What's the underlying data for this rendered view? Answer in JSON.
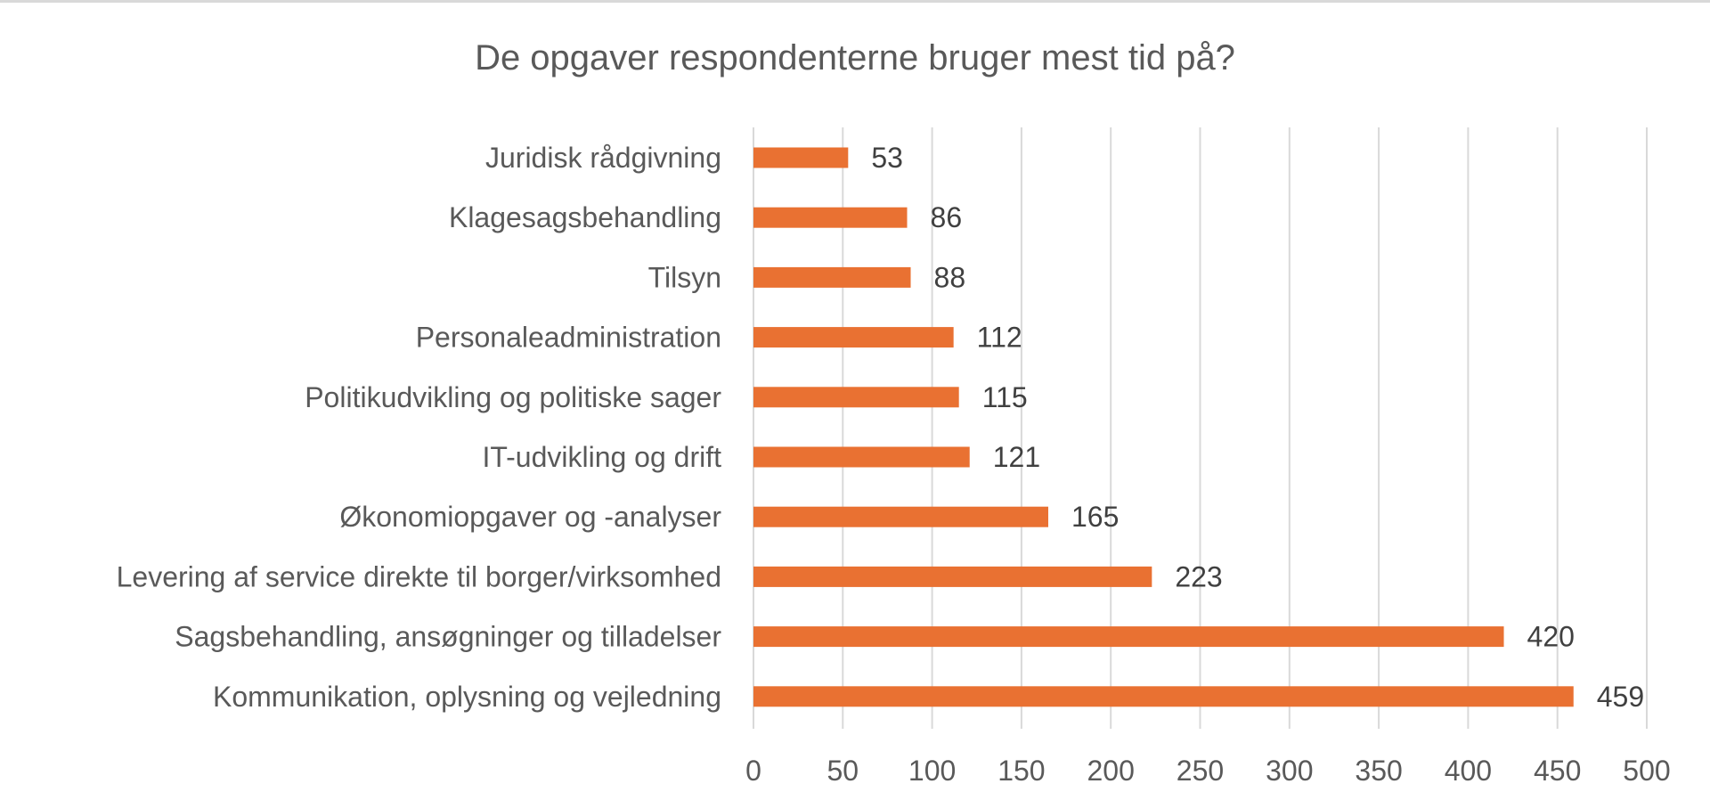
{
  "chart_data": {
    "type": "bar",
    "orientation": "horizontal",
    "title": "De opgaver respondenterne bruger mest tid på?",
    "categories": [
      "Juridisk rådgivning",
      "Klagesagsbehandling",
      "Tilsyn",
      "Personaleadministration",
      "Politikudvikling og politiske sager",
      "IT-udvikling og drift",
      "Økonomiopgaver og -analyser",
      "Levering af service direkte til borger/virksomhed",
      "Sagsbehandling, ansøgninger og tilladelser",
      "Kommunikation, oplysning og vejledning"
    ],
    "values": [
      53,
      86,
      88,
      112,
      115,
      121,
      165,
      223,
      420,
      459
    ],
    "xlim": [
      0,
      500
    ],
    "xticks": [
      0,
      50,
      100,
      150,
      200,
      250,
      300,
      350,
      400,
      450,
      500
    ],
    "xlabel": "",
    "ylabel": "",
    "grid": true,
    "legend": "none",
    "bar_color": "#E97132"
  }
}
